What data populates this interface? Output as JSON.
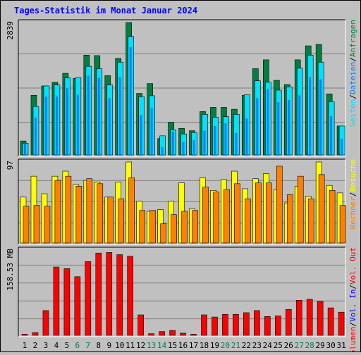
{
  "title": "Tages-Statistik im Monat Januar 2024",
  "colors": {
    "background": "#c0c0c0",
    "title": "#0000ff",
    "hits": "#008040",
    "files": "#0080ff",
    "pages": "#00e0ff",
    "visits": "#ffff00",
    "sites": "#ff8000",
    "kbytes_in": "#0000ff",
    "kbytes_out": "#ff0000",
    "weekend_label": "#00805c",
    "grid": "#808080"
  },
  "chart_data": [
    {
      "type": "bar",
      "panel": "top",
      "ylabel": "2839",
      "ymax": 2839,
      "grid": true,
      "legend": [
        "Anfragen",
        "Dateien",
        "Seiten"
      ],
      "legend_separator": "/",
      "categories": [
        "1",
        "2",
        "3",
        "4",
        "5",
        "6",
        "7",
        "8",
        "9",
        "10",
        "11",
        "12",
        "13",
        "14",
        "15",
        "16",
        "17",
        "18",
        "19",
        "20",
        "21",
        "22",
        "23",
        "24",
        "25",
        "26",
        "27",
        "28",
        "29",
        "30",
        "31"
      ],
      "weekend_days": [
        "6",
        "7",
        "13",
        "14",
        "20",
        "21",
        "27",
        "28"
      ],
      "series": [
        {
          "name": "Anfragen",
          "color_key": "hits",
          "values": [
            300,
            1280,
            1480,
            1560,
            1750,
            1640,
            2140,
            2130,
            1700,
            2070,
            2839,
            1320,
            1530,
            350,
            700,
            570,
            520,
            930,
            1020,
            1020,
            980,
            1280,
            1850,
            2040,
            1600,
            1510,
            2040,
            2340,
            2370,
            1310,
            620
          ]
        },
        {
          "name": "Dateien",
          "color_key": "files",
          "values": [
            250,
            800,
            1250,
            1250,
            1440,
            1290,
            1700,
            1650,
            1220,
            1670,
            2310,
            850,
            1010,
            170,
            500,
            280,
            320,
            520,
            620,
            680,
            470,
            780,
            1220,
            1420,
            1130,
            1180,
            1280,
            1670,
            1620,
            830,
            350
          ]
        },
        {
          "name": "Seiten",
          "color_key": "pages",
          "values": [
            250,
            1040,
            1480,
            1500,
            1650,
            1660,
            1900,
            1850,
            1500,
            1990,
            2540,
            1250,
            1270,
            410,
            540,
            450,
            480,
            870,
            810,
            820,
            870,
            1290,
            1590,
            1560,
            1390,
            1460,
            1860,
            2140,
            1990,
            1140,
            620
          ]
        }
      ]
    },
    {
      "type": "bar",
      "panel": "middle",
      "ylabel": "97",
      "ymax": 97,
      "grid": true,
      "legend": [
        "Besuche",
        "Rechner"
      ],
      "legend_separator": "/",
      "categories": [
        "1",
        "2",
        "3",
        "4",
        "5",
        "6",
        "7",
        "8",
        "9",
        "10",
        "11",
        "12",
        "13",
        "14",
        "15",
        "16",
        "17",
        "18",
        "19",
        "20",
        "21",
        "22",
        "23",
        "24",
        "25",
        "26",
        "27",
        "28",
        "29",
        "30",
        "31"
      ],
      "series": [
        {
          "name": "Besuche",
          "color_key": "visits",
          "values": [
            55,
            80,
            59,
            80,
            86,
            70,
            75,
            73,
            55,
            73,
            97,
            50,
            38,
            40,
            50,
            72,
            41,
            78,
            63,
            76,
            86,
            65,
            77,
            83,
            64,
            48,
            68,
            56,
            97,
            69,
            60
          ]
        },
        {
          "name": "Rechner",
          "color_key": "sites",
          "values": [
            44,
            45,
            44,
            75,
            80,
            68,
            77,
            71,
            55,
            53,
            78,
            39,
            39,
            23,
            34,
            38,
            39,
            67,
            61,
            64,
            71,
            53,
            72,
            72,
            92,
            58,
            80,
            53,
            82,
            63,
            45
          ]
        }
      ]
    },
    {
      "type": "bar",
      "panel": "bottom",
      "ylabel": "158.53 MB",
      "ymax": 158.53,
      "unit": "MB",
      "grid": true,
      "legend": [
        "Vol. Out",
        "Vol. In",
        "Volumen"
      ],
      "legend_separator": "/",
      "categories": [
        "1",
        "2",
        "3",
        "4",
        "5",
        "6",
        "7",
        "8",
        "9",
        "10",
        "11",
        "12",
        "13",
        "14",
        "15",
        "16",
        "17",
        "18",
        "19",
        "20",
        "21",
        "22",
        "23",
        "24",
        "25",
        "26",
        "27",
        "28",
        "29",
        "30",
        "31"
      ],
      "series": [
        {
          "name": "Volumen",
          "color_key": "kbytes_out",
          "values": [
            2,
            5,
            46,
            127,
            124,
            109,
            137,
            153,
            154,
            150,
            147,
            38,
            3,
            7,
            9,
            4,
            2,
            38,
            34,
            39,
            39,
            42,
            46,
            35,
            36,
            48,
            65,
            67,
            63,
            51,
            43
          ]
        }
      ]
    }
  ]
}
